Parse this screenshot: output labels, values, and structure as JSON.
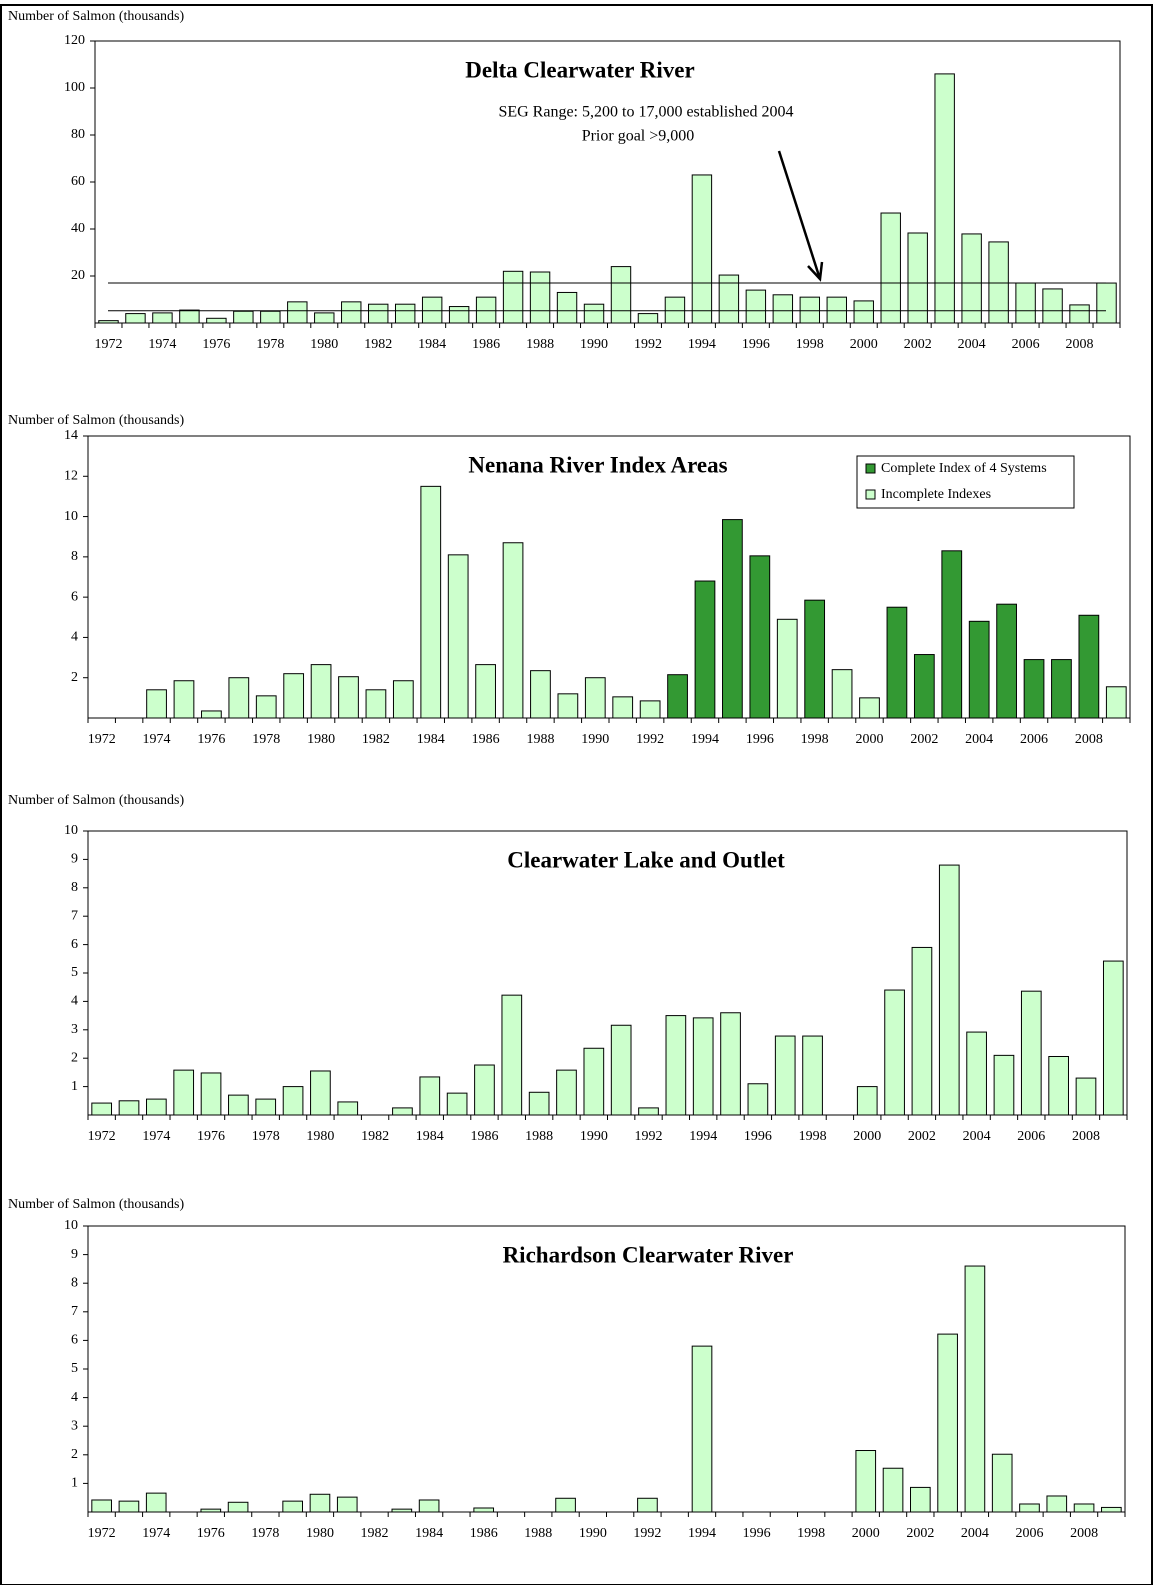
{
  "chart_data": [
    {
      "type": "bar",
      "title": "Delta Clearwater River",
      "y_label": "Number of Salmon (thousands)",
      "annotations": [
        "SEG Range:  5,200 to 17,000 established 2004",
        "Prior goal >9,000"
      ],
      "categories": [
        1972,
        null,
        1974,
        null,
        1976,
        null,
        1978,
        null,
        1980,
        null,
        1982,
        null,
        1984,
        null,
        1986,
        null,
        1988,
        null,
        1990,
        null,
        1992,
        null,
        1994,
        null,
        1996,
        null,
        1998,
        null,
        2000,
        null,
        2002,
        null,
        2004,
        null,
        2006,
        null,
        2008,
        null
      ],
      "values": [
        1,
        4,
        4.3,
        5.5,
        2,
        5,
        5,
        9,
        4.3,
        9,
        8,
        8,
        11,
        7,
        11,
        22,
        21.7,
        13,
        8,
        24,
        4,
        11,
        63,
        20.4,
        14,
        12,
        11,
        11,
        9.4,
        46.8,
        38.3,
        106,
        37.9,
        34.5,
        17,
        14.5,
        7.7,
        17
      ],
      "color": "#ccffcc",
      "reference_lines": [
        5.2,
        17
      ],
      "ylim": [
        0,
        120
      ],
      "yticks": [
        20,
        40,
        60,
        80,
        100,
        120
      ]
    },
    {
      "type": "bar",
      "title": "Nenana River Index Areas",
      "y_label": "Number of Salmon (thousands)",
      "categories": [
        1972,
        null,
        1974,
        null,
        1976,
        null,
        1978,
        null,
        1980,
        null,
        1982,
        null,
        1984,
        null,
        1986,
        null,
        1988,
        null,
        1990,
        null,
        1992,
        null,
        1994,
        null,
        1996,
        null,
        1998,
        null,
        2000,
        null,
        2002,
        null,
        2004,
        null,
        2006,
        null,
        2008,
        null
      ],
      "series": [
        {
          "name": "Complete Index of 4 Systems",
          "color": "#339933",
          "values": [
            null,
            null,
            null,
            null,
            null,
            null,
            null,
            null,
            null,
            null,
            null,
            null,
            null,
            null,
            null,
            null,
            null,
            null,
            null,
            null,
            null,
            2.15,
            6.8,
            9.85,
            8.05,
            null,
            5.85,
            null,
            null,
            5.5,
            3.15,
            8.3,
            4.8,
            5.65,
            2.9,
            2.9,
            5.1,
            null
          ]
        },
        {
          "name": "Incomplete Indexes",
          "color": "#ccffcc",
          "values": [
            null,
            null,
            1.4,
            1.85,
            0.35,
            2.0,
            1.1,
            2.2,
            2.65,
            2.05,
            1.4,
            1.85,
            11.5,
            8.1,
            2.65,
            8.7,
            2.35,
            1.2,
            2.0,
            1.05,
            0.85,
            null,
            null,
            null,
            null,
            4.9,
            null,
            2.4,
            1.0,
            null,
            null,
            null,
            null,
            null,
            null,
            null,
            null,
            1.55
          ]
        }
      ],
      "legend": "upper right",
      "ylim": [
        0,
        14
      ],
      "yticks": [
        2,
        4,
        6,
        8,
        10,
        12,
        14
      ]
    },
    {
      "type": "bar",
      "title": "Clearwater Lake and Outlet",
      "y_label": "Number of Salmon (thousands)",
      "categories": [
        1972,
        null,
        1974,
        null,
        1976,
        null,
        1978,
        null,
        1980,
        null,
        1982,
        null,
        1984,
        null,
        1986,
        null,
        1988,
        null,
        1990,
        null,
        1992,
        null,
        1994,
        null,
        1996,
        null,
        1998,
        null,
        2000,
        null,
        2002,
        null,
        2004,
        null,
        2006,
        null,
        2008,
        null
      ],
      "values": [
        0.42,
        0.5,
        0.56,
        1.58,
        1.48,
        0.7,
        0.56,
        1.0,
        1.55,
        0.46,
        null,
        0.25,
        1.34,
        0.77,
        1.76,
        4.22,
        0.8,
        1.58,
        2.35,
        3.16,
        0.25,
        3.5,
        3.42,
        3.6,
        1.1,
        2.78,
        2.78,
        null,
        1.0,
        4.4,
        5.9,
        8.8,
        2.92,
        2.1,
        4.36,
        2.06,
        1.3,
        5.42
      ],
      "color": "#ccffcc",
      "ylim": [
        0,
        10
      ],
      "yticks": [
        1,
        2,
        3,
        4,
        5,
        6,
        7,
        8,
        9,
        10
      ]
    },
    {
      "type": "bar",
      "title": "Richardson Clearwater River",
      "y_label": "Number of Salmon (thousands)",
      "categories": [
        1972,
        null,
        1974,
        null,
        1976,
        null,
        1978,
        null,
        1980,
        null,
        1982,
        null,
        1984,
        null,
        1986,
        null,
        1988,
        null,
        1990,
        null,
        1992,
        null,
        1994,
        null,
        1996,
        null,
        1998,
        null,
        2000,
        null,
        2002,
        null,
        2004,
        null,
        2006,
        null,
        2008,
        null
      ],
      "values": [
        0.42,
        0.38,
        0.66,
        null,
        0.1,
        0.34,
        null,
        0.38,
        0.62,
        0.52,
        null,
        0.1,
        0.42,
        null,
        0.14,
        null,
        null,
        0.48,
        null,
        null,
        0.48,
        null,
        5.8,
        null,
        null,
        null,
        null,
        null,
        2.15,
        1.53,
        0.86,
        6.22,
        8.6,
        2.02,
        0.28,
        0.56,
        0.28,
        0.16
      ],
      "color": "#ccffcc",
      "ylim": [
        0,
        10
      ],
      "yticks": [
        1,
        2,
        3,
        4,
        5,
        6,
        7,
        8,
        9,
        10
      ]
    }
  ]
}
